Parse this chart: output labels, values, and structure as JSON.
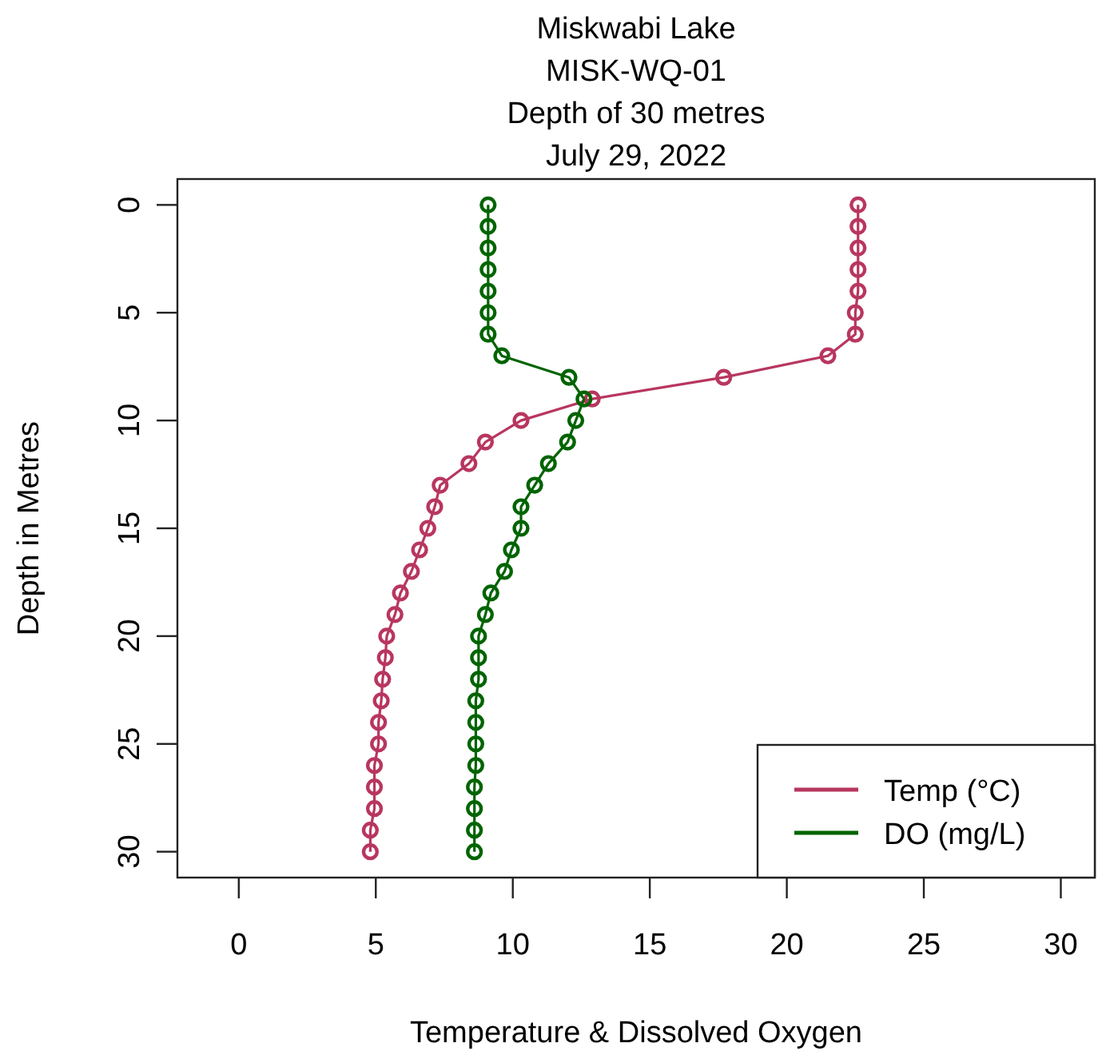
{
  "chart_data": {
    "type": "line",
    "title": "Miskwabi Lake\nMISK-WQ-01\nDepth of 30 metres\nJuly 29, 2022",
    "xlabel": "Temperature & Dissolved Oxygen",
    "ylabel": "Depth in Metres",
    "xlim": [
      -2.24,
      31.24
    ],
    "xticks": [
      0,
      5,
      10,
      15,
      20,
      25,
      30
    ],
    "ylim": [
      31.2,
      -1.2
    ],
    "yticks": [
      0,
      5,
      10,
      15,
      20,
      25,
      30
    ],
    "marker": "circle",
    "line_style": "solid",
    "legend": "bottom right",
    "grid": false,
    "series": [
      {
        "name": "Temp (°C)",
        "color": "#b8365f",
        "x": [
          22.6,
          22.6,
          22.6,
          22.6,
          22.6,
          22.5,
          22.5,
          21.5,
          17.7,
          12.9,
          10.3,
          9.0,
          8.4,
          7.35,
          7.15,
          6.9,
          6.6,
          6.3,
          5.9,
          5.7,
          5.4,
          5.35,
          5.25,
          5.2,
          5.1,
          5.1,
          4.95,
          4.95,
          4.95,
          4.8,
          4.8
        ],
        "values": [
          0,
          1,
          2,
          3,
          4,
          5,
          6,
          7,
          8,
          9,
          10,
          11,
          12,
          13,
          14,
          15,
          16,
          17,
          18,
          19,
          20,
          21,
          22,
          23,
          24,
          25,
          26,
          27,
          28,
          29,
          30
        ]
      },
      {
        "name": "DO (mg/L)",
        "color": "#006400",
        "x": [
          9.1,
          9.1,
          9.1,
          9.1,
          9.1,
          9.1,
          9.1,
          9.6,
          12.05,
          12.6,
          12.3,
          12.0,
          11.3,
          10.8,
          10.3,
          10.3,
          9.95,
          9.7,
          9.2,
          9.0,
          8.75,
          8.75,
          8.75,
          8.65,
          8.65,
          8.65,
          8.65,
          8.6,
          8.6,
          8.6,
          8.6
        ],
        "values": [
          0,
          1,
          2,
          3,
          4,
          5,
          6,
          7,
          8,
          9,
          10,
          11,
          12,
          13,
          14,
          15,
          16,
          17,
          18,
          19,
          20,
          21,
          22,
          23,
          24,
          25,
          26,
          27,
          28,
          29,
          30
        ]
      }
    ]
  }
}
